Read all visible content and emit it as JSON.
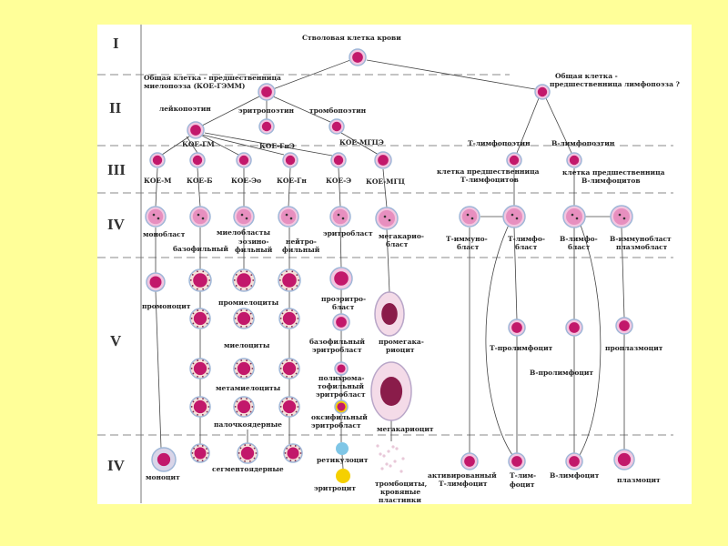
{
  "colors": {
    "background": "#ffff99",
    "panel": "#ffffff",
    "nucleus": "#c2186b",
    "cytoplasm": "#f3c6e0",
    "membrane": "#9fb7d8"
  },
  "stages": [
    "I",
    "II",
    "III",
    "IV",
    "V",
    "IV"
  ],
  "labels": {
    "stem": "Стволовая клетка крови",
    "myelo1": "Общая клетка - предшественница",
    "myelo2": "миелопоэза (КОЕ-ГЭММ)",
    "lympho1": "Общая клетка -",
    "lympho2": "предшественница лимфопоэза ?",
    "leukopoietin": "лейкопоэтин",
    "erythropoietin": "эритропоэтин",
    "thrombopoietin": "тромбопоэтин",
    "t_lymphopoietin": "Т-лимфопоэтин",
    "b_lymphopoietin": "В-лимфопоэтин",
    "koe_gm": "КОЕ-ГМ",
    "koe_gne": "КОЕ-ГнЭ",
    "koe_mgce": "КОЕ-МГЦЭ",
    "koe_m": "КОЕ-М",
    "koe_b": "КОЕ-Б",
    "koe_eo": "КОЕ-Эо",
    "koe_gn": "КОЕ-Гн",
    "koe_e": "КОЕ-Э",
    "koe_mgc": "КОЕ-МГЦ",
    "t_prec1": "клетка предшественница",
    "t_prec2": "Т-лимфоцитов",
    "b_prec1": "клетка предшественница",
    "b_prec2": "В-лимфоцитов",
    "monoblast": "монобласт",
    "myeloblasts": "миелобласты",
    "baso": "базофильный",
    "eos1": "эозино-",
    "eos2": "фильный",
    "neut1": "нейтро-",
    "neut2": "фильный",
    "erythroblast": "эритробласт",
    "megakaryoblast1": "мегакарио-",
    "megakaryoblast2": "бласт",
    "t_immunoblast1": "Т-иммуно-",
    "t_immunoblast2": "бласт",
    "t_lymphoblast1": "Т-лимфо-",
    "t_lymphoblast2": "бласт",
    "b_lymphoblast1": "В-лимфо-",
    "b_lymphoblast2": "бласт",
    "b_immunoblast1": "В-иммунобласт",
    "b_immunoblast2": "плазмобласт",
    "promonocyte": "промоноцит",
    "promyelocytes": "промиелоциты",
    "proerythro1": "проэритро-",
    "proerythro2": "бласт",
    "myelocytes": "миелоциты",
    "baso_erythro1": "базофильный",
    "baso_erythro2": "эритробласт",
    "promegakaryocyte1": "промегака-",
    "promegakaryocyte2": "риоцит",
    "metamyelocytes": "метамиелоциты",
    "polychrom1": "полихрома-",
    "polychrom2": "тофильный",
    "polychrom3": "эритробласт",
    "band": "палочкоядерные",
    "oxy1": "оксифильный",
    "oxy2": "эритробласт",
    "megakaryocyte": "мегакариоцит",
    "t_prolymphocyte": "Т-пролимфоцит",
    "b_prolymphocyte": "В-пролимфоцит",
    "proplasmocyte": "проплазмоцит",
    "monocyte": "моноцит",
    "segmented": "сегментоядерные",
    "reticulocyte": "ретикулоцит",
    "erythrocyte": "эритроцит",
    "platelets1": "тромбоциты,",
    "platelets2": "кровяные",
    "platelets3": "пластинки",
    "act_t1": "активированный",
    "act_t2": "Т-лимфоцит",
    "t_lymph1": "Т-лим-",
    "t_lymph2": "фоцит",
    "b_lymphocyte": "В-лимфоцит",
    "plasmocyte": "плазмоцит"
  }
}
